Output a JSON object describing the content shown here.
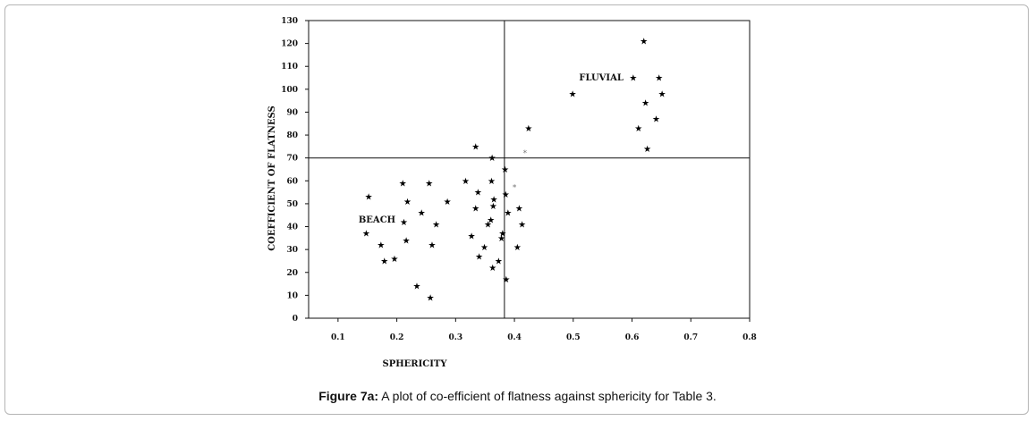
{
  "caption": {
    "label": "Figure 7a:",
    "text": " A plot of co-efficient of flatness against sphericity for Table 3."
  },
  "chart_data": {
    "type": "scatter",
    "title": "",
    "xlabel": "SPHERICITY",
    "ylabel": "COEFFICIENT OF FLATNESS",
    "xlim": [
      0.05,
      0.8
    ],
    "ylim": [
      0,
      130
    ],
    "xticks": [
      0.1,
      0.2,
      0.3,
      0.4,
      0.5,
      0.6,
      0.7,
      0.8
    ],
    "xtick_labels": [
      "0.1",
      "0.2",
      "0.3",
      "0.4",
      "0.5",
      "0.6",
      "0.7",
      "0.8"
    ],
    "yticks": [
      0,
      10,
      20,
      30,
      40,
      50,
      60,
      70,
      80,
      90,
      100,
      110,
      120,
      130
    ],
    "divider_x": 0.383,
    "divider_y": 70,
    "annotations": [
      {
        "text": "FLUVIAL",
        "x": 0.51,
        "y": 105
      },
      {
        "text": "BEACH",
        "x": 0.135,
        "y": 43
      }
    ],
    "marker": "★",
    "faint_marker": "*",
    "points": [
      {
        "x": 0.152,
        "y": 53
      },
      {
        "x": 0.148,
        "y": 37
      },
      {
        "x": 0.173,
        "y": 32
      },
      {
        "x": 0.179,
        "y": 25
      },
      {
        "x": 0.196,
        "y": 26
      },
      {
        "x": 0.21,
        "y": 59
      },
      {
        "x": 0.218,
        "y": 51
      },
      {
        "x": 0.212,
        "y": 42
      },
      {
        "x": 0.216,
        "y": 34
      },
      {
        "x": 0.234,
        "y": 14
      },
      {
        "x": 0.242,
        "y": 46
      },
      {
        "x": 0.255,
        "y": 59
      },
      {
        "x": 0.26,
        "y": 32
      },
      {
        "x": 0.257,
        "y": 9
      },
      {
        "x": 0.267,
        "y": 41
      },
      {
        "x": 0.286,
        "y": 51
      },
      {
        "x": 0.317,
        "y": 60
      },
      {
        "x": 0.327,
        "y": 36
      },
      {
        "x": 0.334,
        "y": 75
      },
      {
        "x": 0.338,
        "y": 55
      },
      {
        "x": 0.334,
        "y": 48
      },
      {
        "x": 0.34,
        "y": 27
      },
      {
        "x": 0.349,
        "y": 31
      },
      {
        "x": 0.355,
        "y": 41
      },
      {
        "x": 0.36,
        "y": 43
      },
      {
        "x": 0.362,
        "y": 70
      },
      {
        "x": 0.361,
        "y": 60
      },
      {
        "x": 0.365,
        "y": 52
      },
      {
        "x": 0.364,
        "y": 49
      },
      {
        "x": 0.363,
        "y": 22
      },
      {
        "x": 0.373,
        "y": 25
      },
      {
        "x": 0.38,
        "y": 37
      },
      {
        "x": 0.378,
        "y": 35
      },
      {
        "x": 0.384,
        "y": 65
      },
      {
        "x": 0.385,
        "y": 54
      },
      {
        "x": 0.386,
        "y": 17
      },
      {
        "x": 0.389,
        "y": 46
      },
      {
        "x": 0.405,
        "y": 31
      },
      {
        "x": 0.408,
        "y": 48
      },
      {
        "x": 0.413,
        "y": 41
      },
      {
        "x": 0.424,
        "y": 83
      },
      {
        "x": 0.499,
        "y": 98
      },
      {
        "x": 0.602,
        "y": 105
      },
      {
        "x": 0.611,
        "y": 83
      },
      {
        "x": 0.62,
        "y": 121
      },
      {
        "x": 0.623,
        "y": 94
      },
      {
        "x": 0.626,
        "y": 74
      },
      {
        "x": 0.641,
        "y": 87
      },
      {
        "x": 0.646,
        "y": 105
      },
      {
        "x": 0.651,
        "y": 98
      }
    ],
    "faint_points": [
      {
        "x": 0.418,
        "y": 73
      },
      {
        "x": 0.4,
        "y": 58
      }
    ]
  }
}
